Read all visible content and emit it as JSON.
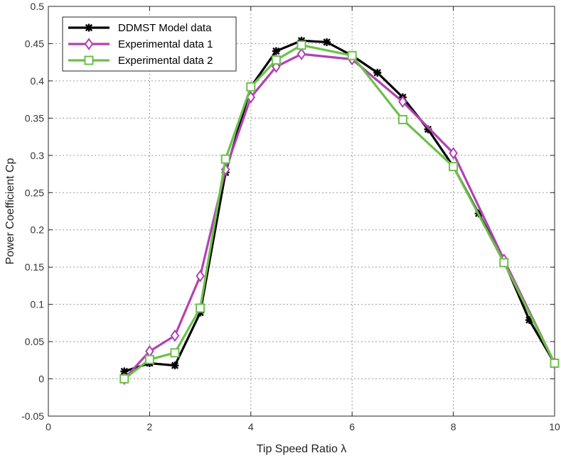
{
  "chart_data": {
    "type": "line",
    "xlabel": "Tip Speed Ratio   λ",
    "ylabel": "Power Coefficient   Cp",
    "xlim": [
      0,
      10
    ],
    "ylim": [
      -0.05,
      0.5
    ],
    "xticks": [
      0,
      2,
      4,
      6,
      8,
      10
    ],
    "yticks": [
      -0.05,
      0,
      0.05,
      0.1,
      0.15,
      0.2,
      0.25,
      0.3,
      0.35,
      0.4,
      0.45,
      0.5
    ],
    "ytick_labels": [
      "-0.05",
      "0",
      "0.05",
      "0.1",
      "0.15",
      "0.2",
      "0.25",
      "0.3",
      "0.35",
      "0.4",
      "0.45",
      "0.5"
    ],
    "grid": true,
    "legend_position": "top-left",
    "series": [
      {
        "name": "DDMST Model data",
        "color": "#000000",
        "marker": "asterisk",
        "x": [
          1.5,
          2.0,
          2.5,
          3.0,
          3.5,
          4.0,
          4.5,
          5.0,
          5.5,
          6.0,
          6.5,
          7.0,
          7.5,
          8.0,
          8.5,
          9.0,
          9.5,
          10.0
        ],
        "y": [
          0.01,
          0.021,
          0.018,
          0.089,
          0.277,
          0.392,
          0.44,
          0.454,
          0.452,
          0.434,
          0.411,
          0.378,
          0.335,
          0.285,
          0.222,
          0.158,
          0.079,
          0.021
        ]
      },
      {
        "name": "Experimental data 1",
        "color": "#b142b1",
        "marker": "diamond",
        "x": [
          1.5,
          2.0,
          2.5,
          3.0,
          3.5,
          4.0,
          4.5,
          5.0,
          6.0,
          7.0,
          8.0,
          9.0,
          10.0
        ],
        "y": [
          0.0,
          0.037,
          0.058,
          0.138,
          0.281,
          0.378,
          0.419,
          0.436,
          0.429,
          0.372,
          0.303,
          0.16,
          0.021
        ]
      },
      {
        "name": "Experimental data 2",
        "color": "#6cc04a",
        "marker": "square",
        "x": [
          1.5,
          2.0,
          2.5,
          3.0,
          3.5,
          4.0,
          4.5,
          5.0,
          6.0,
          7.0,
          8.0,
          9.0,
          10.0
        ],
        "y": [
          0.0,
          0.026,
          0.035,
          0.095,
          0.295,
          0.392,
          0.428,
          0.448,
          0.434,
          0.348,
          0.285,
          0.156,
          0.021
        ]
      }
    ]
  }
}
